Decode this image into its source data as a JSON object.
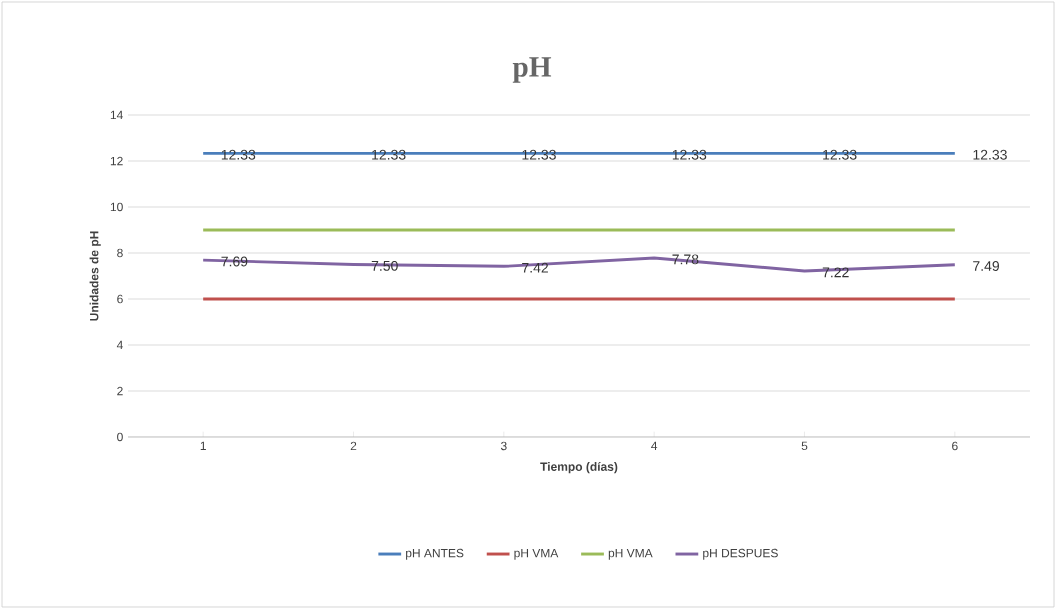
{
  "chart_data": {
    "type": "line",
    "title": "pH",
    "xlabel": "Tiempo (días)",
    "ylabel": "Unidades de pH",
    "categories": [
      "1",
      "2",
      "3",
      "4",
      "5",
      "6"
    ],
    "series": [
      {
        "name": "pH ANTES",
        "color": "#4a7ebb",
        "values": [
          12.33,
          12.33,
          12.33,
          12.33,
          12.33,
          12.33
        ],
        "value_labels": [
          "12.33",
          "12.33",
          "12.33",
          "12.33",
          "12.33",
          "12.33"
        ]
      },
      {
        "name": "pH VMA",
        "color": "#c0504d",
        "values": [
          6,
          6,
          6,
          6,
          6,
          6
        ]
      },
      {
        "name": "pH VMA",
        "color": "#9bbb59",
        "values": [
          9,
          9,
          9,
          9,
          9,
          9
        ]
      },
      {
        "name": "pH DESPUES",
        "color": "#8064a2",
        "values": [
          7.69,
          7.5,
          7.42,
          7.78,
          7.22,
          7.49
        ],
        "value_labels": [
          "7.69",
          "7.50",
          "7.42",
          "7.78",
          "7.22",
          "7.49"
        ]
      }
    ],
    "ylim": [
      0,
      14
    ],
    "yticks": [
      0,
      2,
      4,
      6,
      8,
      10,
      12,
      14
    ],
    "grid": "y",
    "legend": "bottom",
    "marker": "none",
    "line_style": "solid"
  }
}
